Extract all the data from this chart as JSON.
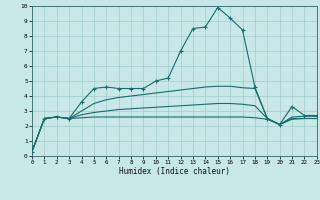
{
  "xlabel": "Humidex (Indice chaleur)",
  "xlim": [
    0,
    23
  ],
  "ylim": [
    0,
    10
  ],
  "bg_color": "#c8e8e8",
  "grid_color": "#a0cccc",
  "line_color": "#1a6b6b",
  "lines": [
    {
      "x": [
        0,
        1,
        2,
        3,
        4,
        5,
        6,
        7,
        8,
        9,
        10,
        11,
        12,
        13,
        14,
        15,
        16,
        17,
        18,
        19,
        20,
        21,
        22,
        23
      ],
      "y": [
        0.3,
        2.5,
        2.6,
        2.5,
        3.6,
        4.5,
        4.6,
        4.5,
        4.5,
        4.5,
        5.0,
        5.2,
        7.0,
        8.5,
        8.6,
        9.9,
        9.2,
        8.4,
        4.6,
        2.5,
        2.1,
        3.3,
        2.7,
        2.7
      ],
      "marker": "+"
    },
    {
      "x": [
        0,
        1,
        2,
        3,
        4,
        5,
        6,
        7,
        8,
        9,
        10,
        11,
        12,
        13,
        14,
        15,
        16,
        17,
        18,
        19,
        20,
        21,
        22,
        23
      ],
      "y": [
        0.3,
        2.5,
        2.6,
        2.5,
        3.0,
        3.5,
        3.75,
        3.9,
        4.0,
        4.1,
        4.2,
        4.3,
        4.4,
        4.5,
        4.6,
        4.65,
        4.65,
        4.55,
        4.5,
        2.5,
        2.1,
        2.6,
        2.65,
        2.65
      ],
      "marker": null
    },
    {
      "x": [
        0,
        1,
        2,
        3,
        4,
        5,
        6,
        7,
        8,
        9,
        10,
        11,
        12,
        13,
        14,
        15,
        16,
        17,
        18,
        19,
        20,
        21,
        22,
        23
      ],
      "y": [
        0.3,
        2.5,
        2.6,
        2.5,
        2.75,
        2.9,
        3.0,
        3.1,
        3.15,
        3.2,
        3.25,
        3.3,
        3.35,
        3.4,
        3.45,
        3.5,
        3.5,
        3.45,
        3.35,
        2.5,
        2.1,
        2.5,
        2.5,
        2.5
      ],
      "marker": null
    },
    {
      "x": [
        0,
        1,
        2,
        3,
        4,
        5,
        6,
        7,
        8,
        9,
        10,
        11,
        12,
        13,
        14,
        15,
        16,
        17,
        18,
        19,
        20,
        21,
        22,
        23
      ],
      "y": [
        0.3,
        2.5,
        2.6,
        2.5,
        2.55,
        2.6,
        2.6,
        2.6,
        2.6,
        2.6,
        2.6,
        2.6,
        2.6,
        2.6,
        2.6,
        2.6,
        2.6,
        2.6,
        2.55,
        2.45,
        2.1,
        2.45,
        2.5,
        2.5
      ],
      "marker": null
    }
  ]
}
